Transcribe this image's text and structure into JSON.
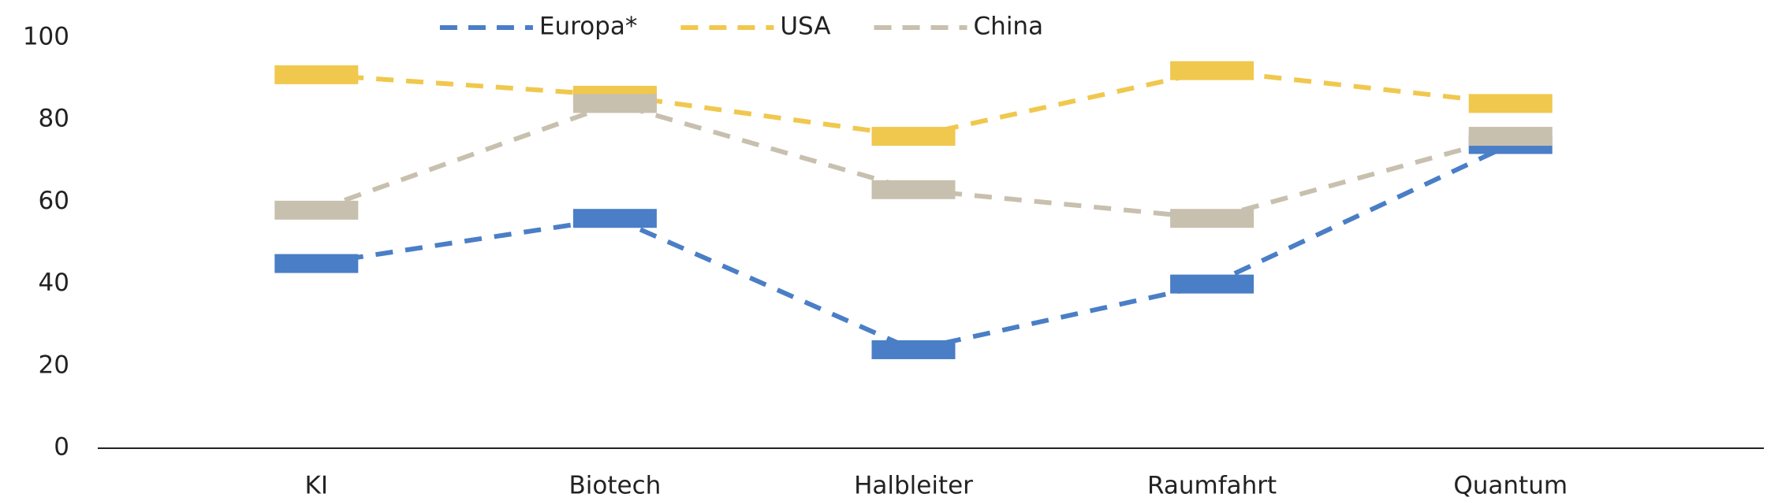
{
  "chart_data": {
    "type": "line",
    "categories": [
      "KI",
      "Biotech",
      "Halbleiter",
      "Raumfahrt",
      "Quantum"
    ],
    "series": [
      {
        "name": "Europa*",
        "color": "#4a7ec6",
        "values": [
          45,
          56,
          24,
          40,
          74
        ]
      },
      {
        "name": "USA",
        "color": "#f0c84e",
        "values": [
          91,
          86,
          76,
          92,
          84
        ]
      },
      {
        "name": "China",
        "color": "#c8c0ae",
        "values": [
          58,
          84,
          63,
          56,
          76
        ]
      }
    ],
    "ylim": [
      0,
      100
    ],
    "yticks": [
      0,
      20,
      40,
      60,
      80,
      100
    ],
    "grid": false,
    "legend": "top",
    "dashed": true
  }
}
